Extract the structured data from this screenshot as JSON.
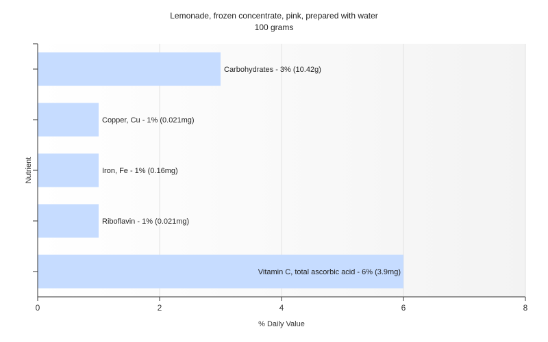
{
  "chart_data": {
    "type": "bar",
    "orientation": "horizontal",
    "title": "Lemonade, frozen concentrate, pink, prepared with water",
    "subtitle": "100 grams",
    "xlabel": "% Daily Value",
    "ylabel": "Nutrient",
    "xlim": [
      0,
      8
    ],
    "xticks": [
      "0",
      "2",
      "4",
      "6",
      "8"
    ],
    "grid": true,
    "bar_color": "#c6dcff",
    "categories": [
      "Carbohydrates",
      "Copper, Cu",
      "Iron, Fe",
      "Riboflavin",
      "Vitamin C, total ascorbic acid"
    ],
    "values": [
      3,
      1,
      1,
      1,
      6
    ],
    "data_labels": [
      "Carbohydrates - 3% (10.42g)",
      "Copper, Cu - 1% (0.021mg)",
      "Iron, Fe - 1% (0.16mg)",
      "Riboflavin - 1% (0.021mg)",
      "Vitamin C, total ascorbic acid - 6% (3.9mg)"
    ]
  }
}
